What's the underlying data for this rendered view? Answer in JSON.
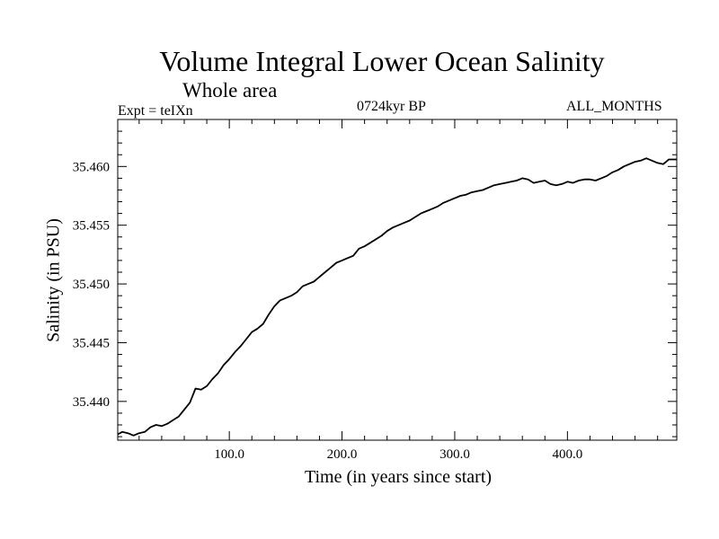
{
  "chart_data": {
    "type": "line",
    "title": "Volume Integral Lower Ocean Salinity",
    "subtitle": "Whole area",
    "annotations": {
      "experiment": "Expt = teIXn",
      "period": "0724kyr BP",
      "months": "ALL_MONTHS"
    },
    "xlabel": "Time (in years since start)",
    "ylabel": "Salinity (in PSU)",
    "xlim": [
      1,
      497
    ],
    "ylim": [
      35.4367,
      35.464
    ],
    "xticks": [
      100,
      200,
      300,
      400
    ],
    "xtick_labels": [
      "100.0",
      "200.0",
      "300.0",
      "400.0"
    ],
    "yticks": [
      35.44,
      35.445,
      35.45,
      35.455,
      35.46
    ],
    "ytick_labels": [
      "35.440",
      "35.445",
      "35.450",
      "35.455",
      "35.460"
    ],
    "grid": false,
    "series": [
      {
        "x": [
          1,
          5,
          10,
          15,
          20,
          25,
          30,
          35,
          40,
          45,
          50,
          55,
          60,
          65,
          70,
          75,
          80,
          85,
          90,
          95,
          100,
          105,
          110,
          115,
          120,
          125,
          130,
          135,
          140,
          145,
          150,
          155,
          160,
          165,
          170,
          175,
          180,
          185,
          190,
          195,
          200,
          205,
          210,
          215,
          220,
          225,
          230,
          235,
          240,
          245,
          250,
          255,
          260,
          265,
          270,
          275,
          280,
          285,
          290,
          295,
          300,
          305,
          310,
          315,
          320,
          325,
          330,
          335,
          340,
          345,
          350,
          355,
          360,
          365,
          370,
          375,
          380,
          385,
          390,
          395,
          400,
          405,
          410,
          415,
          420,
          425,
          430,
          435,
          440,
          445,
          450,
          455,
          460,
          465,
          470,
          475,
          480,
          485,
          490,
          497
        ],
        "values": [
          35.4372,
          35.4374,
          35.4373,
          35.4371,
          35.4373,
          35.4374,
          35.4378,
          35.438,
          35.4379,
          35.4381,
          35.4384,
          35.4387,
          35.4393,
          35.4399,
          35.4411,
          35.441,
          35.4413,
          35.4419,
          35.4424,
          35.4431,
          35.4436,
          35.4442,
          35.4447,
          35.4453,
          35.4459,
          35.4462,
          35.4466,
          35.4474,
          35.4481,
          35.4486,
          35.4488,
          35.449,
          35.4493,
          35.4498,
          35.45,
          35.4502,
          35.4506,
          35.451,
          35.4514,
          35.4518,
          35.452,
          35.4522,
          35.4524,
          35.453,
          35.4532,
          35.4535,
          35.4538,
          35.4541,
          35.4545,
          35.4548,
          35.455,
          35.4552,
          35.4554,
          35.4557,
          35.456,
          35.4562,
          35.4564,
          35.4566,
          35.4569,
          35.4571,
          35.4573,
          35.4575,
          35.4576,
          35.4578,
          35.4579,
          35.458,
          35.4582,
          35.4584,
          35.4585,
          35.4586,
          35.4587,
          35.4588,
          35.459,
          35.4589,
          35.4586,
          35.4587,
          35.4588,
          35.4585,
          35.4584,
          35.4585,
          35.4587,
          35.4586,
          35.4588,
          35.4589,
          35.4589,
          35.4588,
          35.459,
          35.4592,
          35.4595,
          35.4597,
          35.46,
          35.4602,
          35.4604,
          35.4605,
          35.4607,
          35.4605,
          35.4603,
          35.4602,
          35.4606,
          35.4606
        ]
      }
    ]
  }
}
